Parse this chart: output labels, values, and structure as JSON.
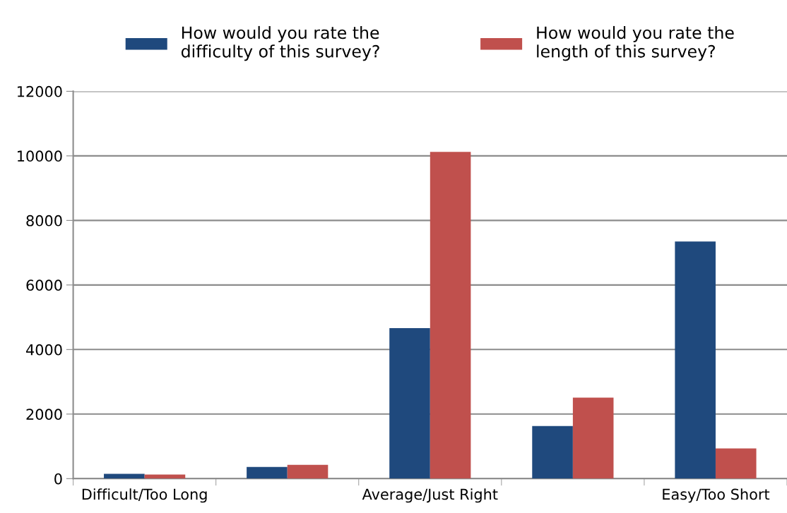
{
  "chart_data": {
    "type": "bar",
    "categories": [
      "Difficult/Too Long",
      null,
      "Average/Just Right",
      null,
      "Easy/Too Short"
    ],
    "series": [
      {
        "name": "How would you rate the\ndifficulty of this survey?",
        "color": "#1f497d",
        "values": [
          150,
          360,
          4665,
          1630,
          7345
        ]
      },
      {
        "name": "How would you rate the\nlength of this survey?",
        "color": "#c0504d",
        "values": [
          125,
          425,
          10125,
          2510,
          935
        ]
      }
    ],
    "ylim": [
      0,
      12000
    ],
    "yticks": [
      0,
      2000,
      4000,
      6000,
      8000,
      10000,
      12000
    ],
    "grid": "y",
    "legend": "top"
  }
}
